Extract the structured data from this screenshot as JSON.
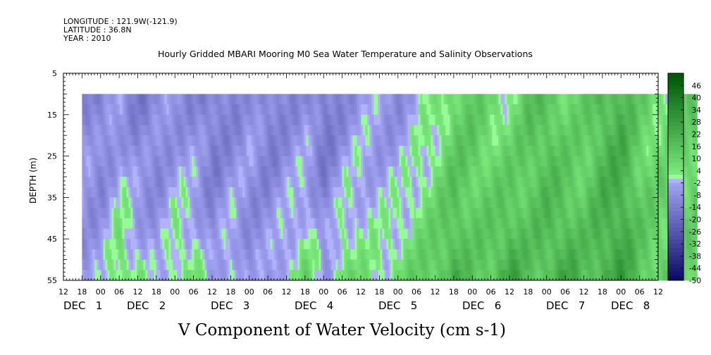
{
  "header": {
    "longitude": "LONGITUDE : 121.9W(-121.9)",
    "latitude": "LATITUDE : 36.8N",
    "year": "YEAR : 2010"
  },
  "chart_data": {
    "type": "heatmap",
    "title": "Hourly Gridded MBARI Mooring M0 Sea Water Temperature and Salinity Observations",
    "ylabel": "DEPTH (m)",
    "xlabel": "V Component of Water Velocity (cm s-1)",
    "y_ticks": [
      5,
      15,
      25,
      35,
      45,
      55
    ],
    "ylim": [
      55,
      5
    ],
    "data_depth_range": [
      10,
      55
    ],
    "x_hour_ticks": [
      "12",
      "18",
      "00",
      "06",
      "12",
      "18",
      "00",
      "06",
      "12",
      "18",
      "00",
      "06",
      "12",
      "18",
      "00",
      "06",
      "12",
      "18",
      "00",
      "06",
      "12",
      "18",
      "00",
      "06",
      "12",
      "18",
      "00",
      "06",
      "12",
      "18",
      "00",
      "06",
      "12"
    ],
    "date_labels": [
      "DEC 1",
      "DEC 2",
      "DEC 3",
      "DEC 4",
      "DEC 5",
      "DEC 6",
      "DEC 7",
      "DEC 8"
    ],
    "date_label_hours": [
      "00",
      "06",
      "06",
      "06",
      "06",
      "06",
      "06",
      "00"
    ],
    "time_start": "DEC 0 12:00",
    "time_end": "DEC 8 12:00",
    "data_time_start": "DEC 0 18:00",
    "colorbar": {
      "labels": [
        46,
        40,
        34,
        28,
        22,
        16,
        10,
        4,
        -2,
        -8,
        -14,
        -20,
        -26,
        -32,
        -38,
        -44,
        -50
      ],
      "range": [
        -50,
        52
      ]
    },
    "velocity_profile": {
      "description_units": "cm s-1",
      "time_hours_from_dec1_00": [
        -6,
        0,
        6,
        12,
        18,
        24,
        30,
        36,
        42,
        48,
        54,
        60,
        66,
        72,
        78,
        84,
        90,
        96,
        102,
        108,
        114,
        120,
        126,
        132,
        138,
        144,
        150,
        156,
        162,
        168,
        174,
        180,
        186,
        192
      ],
      "surface_values": [
        -8,
        -12,
        -6,
        -14,
        -10,
        -8,
        -10,
        -14,
        -12,
        -6,
        -14,
        -10,
        -8,
        -16,
        -10,
        -4,
        -6,
        -8,
        -2,
        2,
        10,
        12,
        6,
        4,
        14,
        16,
        8,
        10,
        18,
        20,
        10,
        6,
        8,
        12
      ],
      "bottom_values": [
        -6,
        -4,
        8,
        4,
        -6,
        6,
        6,
        -8,
        4,
        -10,
        -4,
        2,
        8,
        -6,
        10,
        4,
        2,
        8,
        10,
        14,
        22,
        12,
        16,
        26,
        14,
        18,
        24,
        16,
        22,
        26,
        14,
        12,
        10,
        8
      ]
    }
  }
}
